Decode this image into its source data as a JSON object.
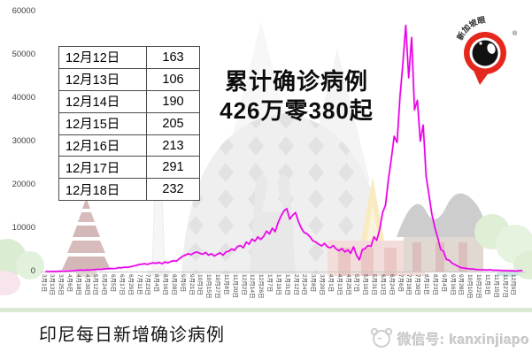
{
  "annotation": {
    "line1": "累计确诊病例",
    "line2": "426万零380起"
  },
  "bottom_title": "印尼每日新增确诊病例",
  "watermark": {
    "wechat_label": "微信号: kanxinjiapo",
    "logo_text": "新加坡眼",
    "logo_reg": "®"
  },
  "colors": {
    "line": "#e600e6",
    "line_glow": "#ff9bff",
    "axis": "#c9c9c9",
    "band_green": "#d9e9d2",
    "logo_red": "#e5281e"
  },
  "table": {
    "rows": [
      {
        "date": "12月12日",
        "value": "163"
      },
      {
        "date": "12月13日",
        "value": "106"
      },
      {
        "date": "12月14日",
        "value": "190"
      },
      {
        "date": "12月15日",
        "value": "205"
      },
      {
        "date": "12月16日",
        "value": "213"
      },
      {
        "date": "12月17日",
        "value": "291"
      },
      {
        "date": "12月18日",
        "value": "232"
      }
    ]
  },
  "chart_data": {
    "type": "line",
    "title": "印尼每日新增确诊病例",
    "series_name": "每日新增确诊病例",
    "line_color": "#e600e6",
    "ylim": [
      0,
      60000
    ],
    "y_ticks": [
      0,
      10000,
      20000,
      30000,
      40000,
      50000,
      60000
    ],
    "grid": false,
    "legend": false,
    "x_tick_interval_days": 12,
    "x_tick_labels": [
      "3月1日",
      "3月13日",
      "3月25日",
      "4月6日",
      "4月18日",
      "4月30日",
      "5月12日",
      "5月24日",
      "6月5日",
      "6月17日",
      "6月29日",
      "7月11日",
      "7月23日",
      "8月4日",
      "8月16日",
      "8月28日",
      "9月9日",
      "9月21日",
      "10月3日",
      "10月15日",
      "10月27日",
      "11月8日",
      "11月20日",
      "12月2日",
      "12月14日",
      "12月26日",
      "1月7日",
      "1月19日",
      "1月31日",
      "2月12日",
      "2月24日",
      "3月8日",
      "3月20日",
      "4月1日",
      "4月13日",
      "4月25日",
      "5月7日",
      "5月19日",
      "5月31日",
      "6月12日",
      "6月24日",
      "7月6日",
      "7月18日",
      "7月30日",
      "8月11日",
      "8月23日",
      "9月4日",
      "9月16日",
      "9月28日",
      "10月10日",
      "10月22日",
      "11月3日",
      "11月15日",
      "11月27日",
      "12月9日"
    ],
    "sample_interval_days": 4,
    "values_start_label": "3月1日",
    "values": [
      0,
      5,
      15,
      30,
      50,
      75,
      100,
      120,
      150,
      200,
      250,
      300,
      340,
      310,
      360,
      340,
      400,
      460,
      530,
      480,
      600,
      650,
      700,
      680,
      720,
      900,
      850,
      1000,
      950,
      1100,
      1250,
      1400,
      1600,
      1700,
      1800,
      1650,
      1900,
      2000,
      1900,
      2100,
      1800,
      2200,
      2000,
      2300,
      2500,
      2400,
      3000,
      3500,
      3800,
      4100,
      3900,
      4300,
      4500,
      4200,
      4000,
      4400,
      3800,
      4100,
      3600,
      4000,
      4300,
      3800,
      4500,
      4700,
      5200,
      4900,
      5800,
      6000,
      5500,
      6800,
      6300,
      7500,
      7000,
      8000,
      7400,
      8100,
      9300,
      8700,
      10000,
      9200,
      11300,
      12800,
      14000,
      14500,
      12100,
      13000,
      13600,
      11500,
      10000,
      9000,
      8700,
      8000,
      7100,
      6800,
      6300,
      5900,
      6500,
      5700,
      5500,
      6000,
      5200,
      4800,
      5300,
      4500,
      5000,
      4200,
      5700,
      3800,
      2700,
      5000,
      5300,
      6000,
      5800,
      8000,
      7200,
      9700,
      13600,
      15300,
      21300,
      25900,
      31200,
      29800,
      40400,
      47900,
      56800,
      44700,
      54000,
      37300,
      39500,
      30100,
      33800,
      22000,
      17700,
      13200,
      10200,
      7800,
      5100,
      4700,
      2800,
      2600,
      1900,
      1600,
      1200,
      900,
      800,
      700,
      600,
      600,
      500,
      450,
      400,
      380,
      350,
      400,
      320,
      300,
      280,
      250,
      230,
      200,
      180,
      163,
      106,
      205,
      232
    ]
  }
}
